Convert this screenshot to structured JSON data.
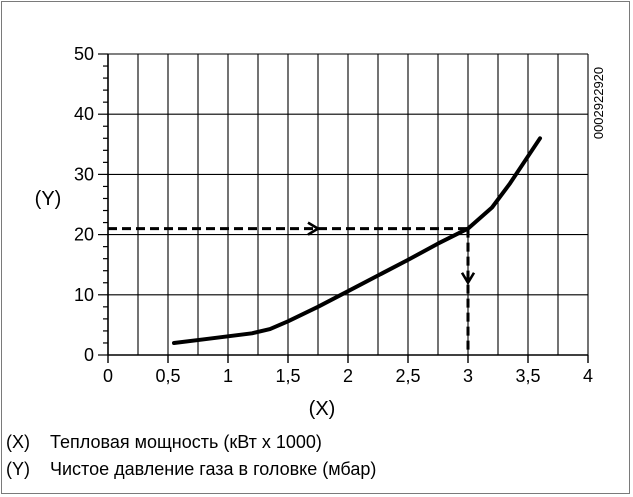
{
  "chart_data": {
    "type": "line",
    "xlabel": "(X)",
    "ylabel": "(Y)",
    "xlim": [
      0,
      4
    ],
    "ylim": [
      0,
      50
    ],
    "x_ticks": [
      "0",
      "0,5",
      "1",
      "1,5",
      "2",
      "2,5",
      "3",
      "3,5",
      "4"
    ],
    "y_ticks": [
      "0",
      "10",
      "20",
      "30",
      "40",
      "50"
    ],
    "grid": true,
    "series": [
      {
        "x": [
          0.55,
          0.8,
          1.0,
          1.2,
          1.35,
          1.5,
          1.75,
          2.0,
          2.25,
          2.5,
          2.75,
          3.0,
          3.2,
          3.35,
          3.5,
          3.6
        ],
        "y": [
          2.0,
          2.6,
          3.1,
          3.6,
          4.3,
          5.6,
          8.0,
          10.6,
          13.2,
          15.8,
          18.5,
          21.0,
          24.5,
          28.5,
          33.0,
          36.0
        ],
        "color": "#000000"
      }
    ],
    "guide": {
      "x": 3,
      "y": 21
    },
    "annotation": "0002922920"
  },
  "legend": [
    {
      "key": "(X)",
      "text": "Тепловая мощность (кВт x 1000)"
    },
    {
      "key": "(Y)",
      "text": "Чистое давление газа в головке (мбар)"
    }
  ]
}
